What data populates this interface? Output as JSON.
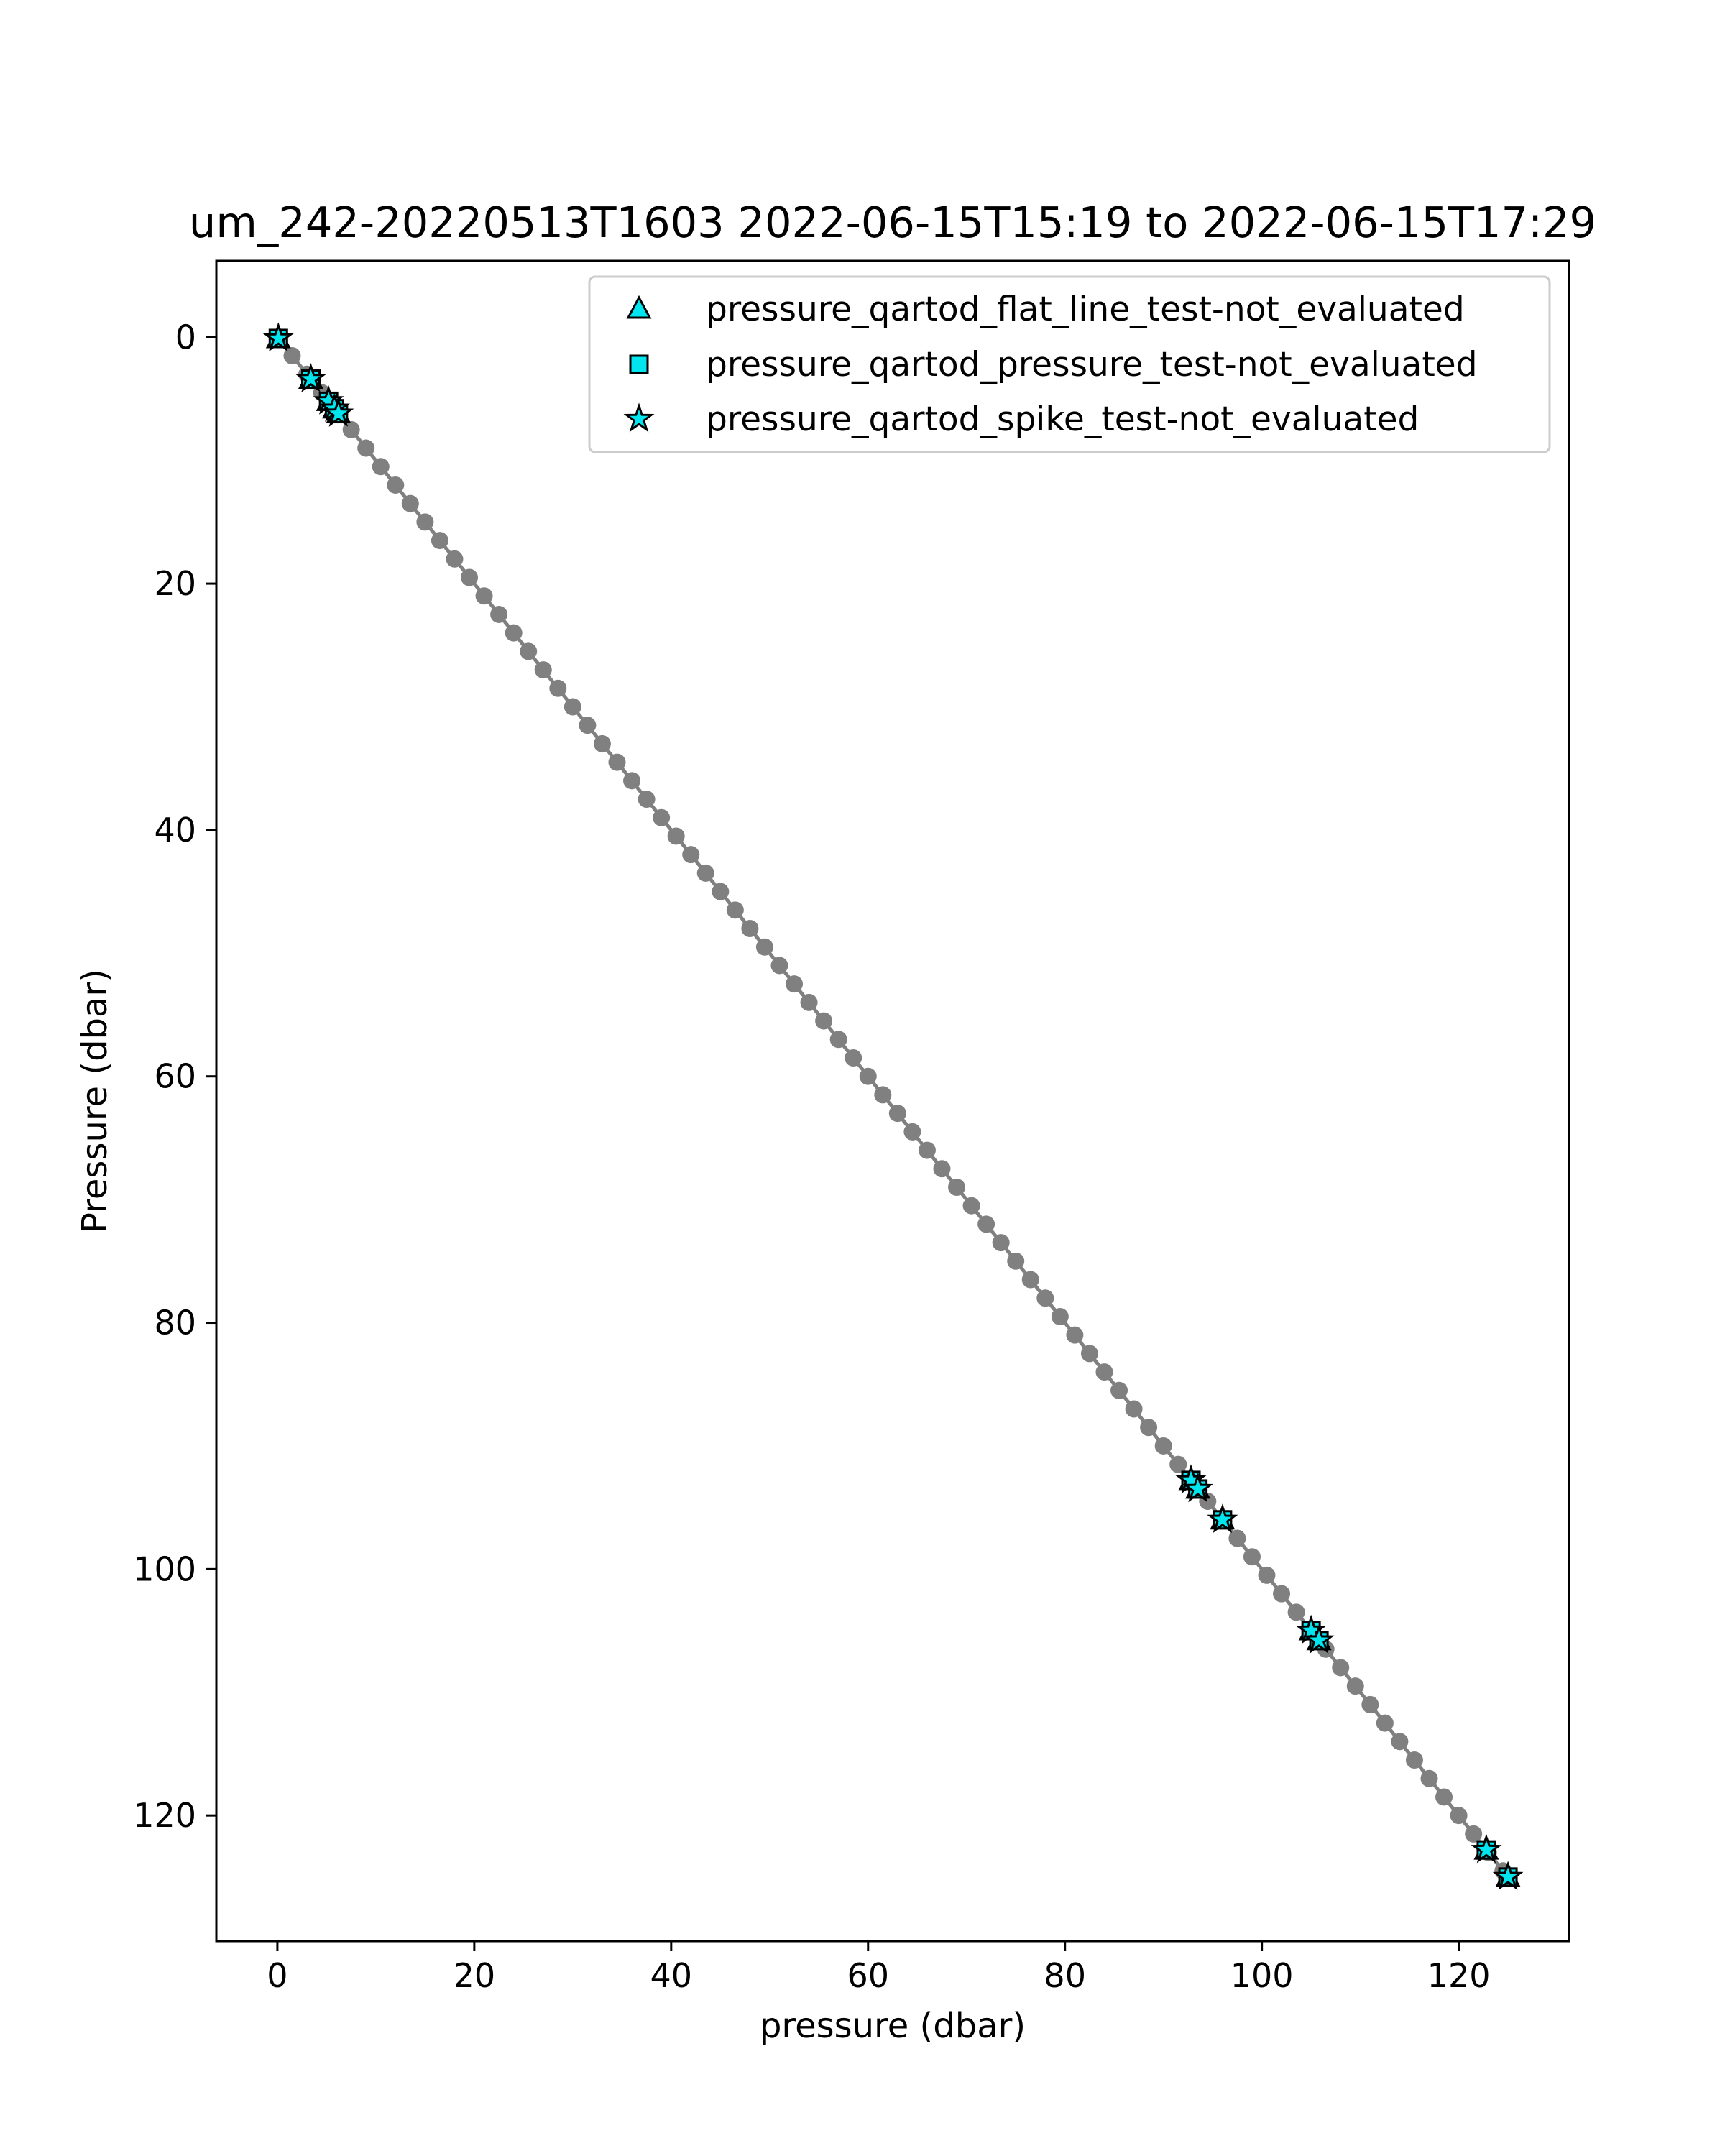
{
  "chart_data": {
    "type": "scatter",
    "title": "um_242-20220513T1603 2022-06-15T15:19 to 2022-06-15T17:29",
    "xlabel": "pressure (dbar)",
    "ylabel": "Pressure (dbar)",
    "xlim": [
      -6.2,
      131.2
    ],
    "ylim": [
      130.2,
      -6.2
    ],
    "y_inverted": true,
    "grid": false,
    "legend_position": "top-right",
    "xticks": [
      0,
      20,
      40,
      60,
      80,
      100,
      120
    ],
    "yticks": [
      0,
      20,
      40,
      60,
      80,
      100,
      120
    ],
    "colors": {
      "profile": "#808080",
      "flag": "#00e5ee",
      "marker_edge": "#000000"
    },
    "profile": {
      "name": "pressure",
      "x": [
        0,
        1.5,
        3,
        4.5,
        6,
        7.5,
        9,
        10.5,
        12,
        13.5,
        15,
        16.5,
        18,
        19.5,
        21,
        22.5,
        24,
        25.5,
        27,
        28.5,
        30,
        31.5,
        33,
        34.5,
        36,
        37.5,
        39,
        40.5,
        42,
        43.5,
        45,
        46.5,
        48,
        49.5,
        51,
        52.5,
        54,
        55.5,
        57,
        58.5,
        60,
        61.5,
        63,
        64.5,
        66,
        67.5,
        69,
        70.5,
        72,
        73.5,
        75,
        76.5,
        78,
        79.5,
        81,
        82.5,
        84,
        85.5,
        87,
        88.5,
        90,
        91.5,
        93,
        94.5,
        96,
        97.5,
        99,
        100.5,
        102,
        103.5,
        105,
        106.5,
        108,
        109.5,
        111,
        112.5,
        114,
        115.5,
        117,
        118.5,
        120,
        121.5,
        123,
        124.5,
        125
      ],
      "y": [
        0,
        1.5,
        3,
        4.5,
        6,
        7.5,
        9,
        10.5,
        12,
        13.5,
        15,
        16.5,
        18,
        19.5,
        21,
        22.5,
        24,
        25.5,
        27,
        28.5,
        30,
        31.5,
        33,
        34.5,
        36,
        37.5,
        39,
        40.5,
        42,
        43.5,
        45,
        46.5,
        48,
        49.5,
        51,
        52.5,
        54,
        55.5,
        57,
        58.5,
        60,
        61.5,
        63,
        64.5,
        66,
        67.5,
        69,
        70.5,
        72,
        73.5,
        75,
        76.5,
        78,
        79.5,
        81,
        82.5,
        84,
        85.5,
        87,
        88.5,
        90,
        91.5,
        93,
        94.5,
        96,
        97.5,
        99,
        100.5,
        102,
        103.5,
        105,
        106.5,
        108,
        109.5,
        111,
        112.5,
        114,
        115.5,
        117,
        118.5,
        120,
        121.5,
        123,
        124.5,
        125
      ]
    },
    "series": [
      {
        "name": "pressure_qartod_flat_line_test-not_evaluated",
        "marker": "triangle",
        "x": [
          0.1,
          3.4,
          5.2,
          5.8,
          6.2,
          92.8,
          93.5,
          96.0,
          105.0,
          105.8,
          122.8,
          125.0
        ],
        "y": [
          0.1,
          3.4,
          5.2,
          5.8,
          6.2,
          92.8,
          93.5,
          96.0,
          105.0,
          105.8,
          122.8,
          125.0
        ]
      },
      {
        "name": "pressure_qartod_pressure_test-not_evaluated",
        "marker": "square",
        "x": [
          0.1,
          3.4,
          5.2,
          5.8,
          6.2,
          92.8,
          93.5,
          96.0,
          105.0,
          105.8,
          122.8,
          125.0
        ],
        "y": [
          0.1,
          3.4,
          5.2,
          5.8,
          6.2,
          92.8,
          93.5,
          96.0,
          105.0,
          105.8,
          122.8,
          125.0
        ]
      },
      {
        "name": "pressure_qartod_spike_test-not_evaluated",
        "marker": "star",
        "x": [
          0.1,
          3.4,
          5.2,
          5.8,
          6.2,
          92.8,
          93.5,
          96.0,
          105.0,
          105.8,
          122.8,
          125.0
        ],
        "y": [
          0.1,
          3.4,
          5.2,
          5.8,
          6.2,
          92.8,
          93.5,
          96.0,
          105.0,
          105.8,
          122.8,
          125.0
        ]
      }
    ]
  }
}
